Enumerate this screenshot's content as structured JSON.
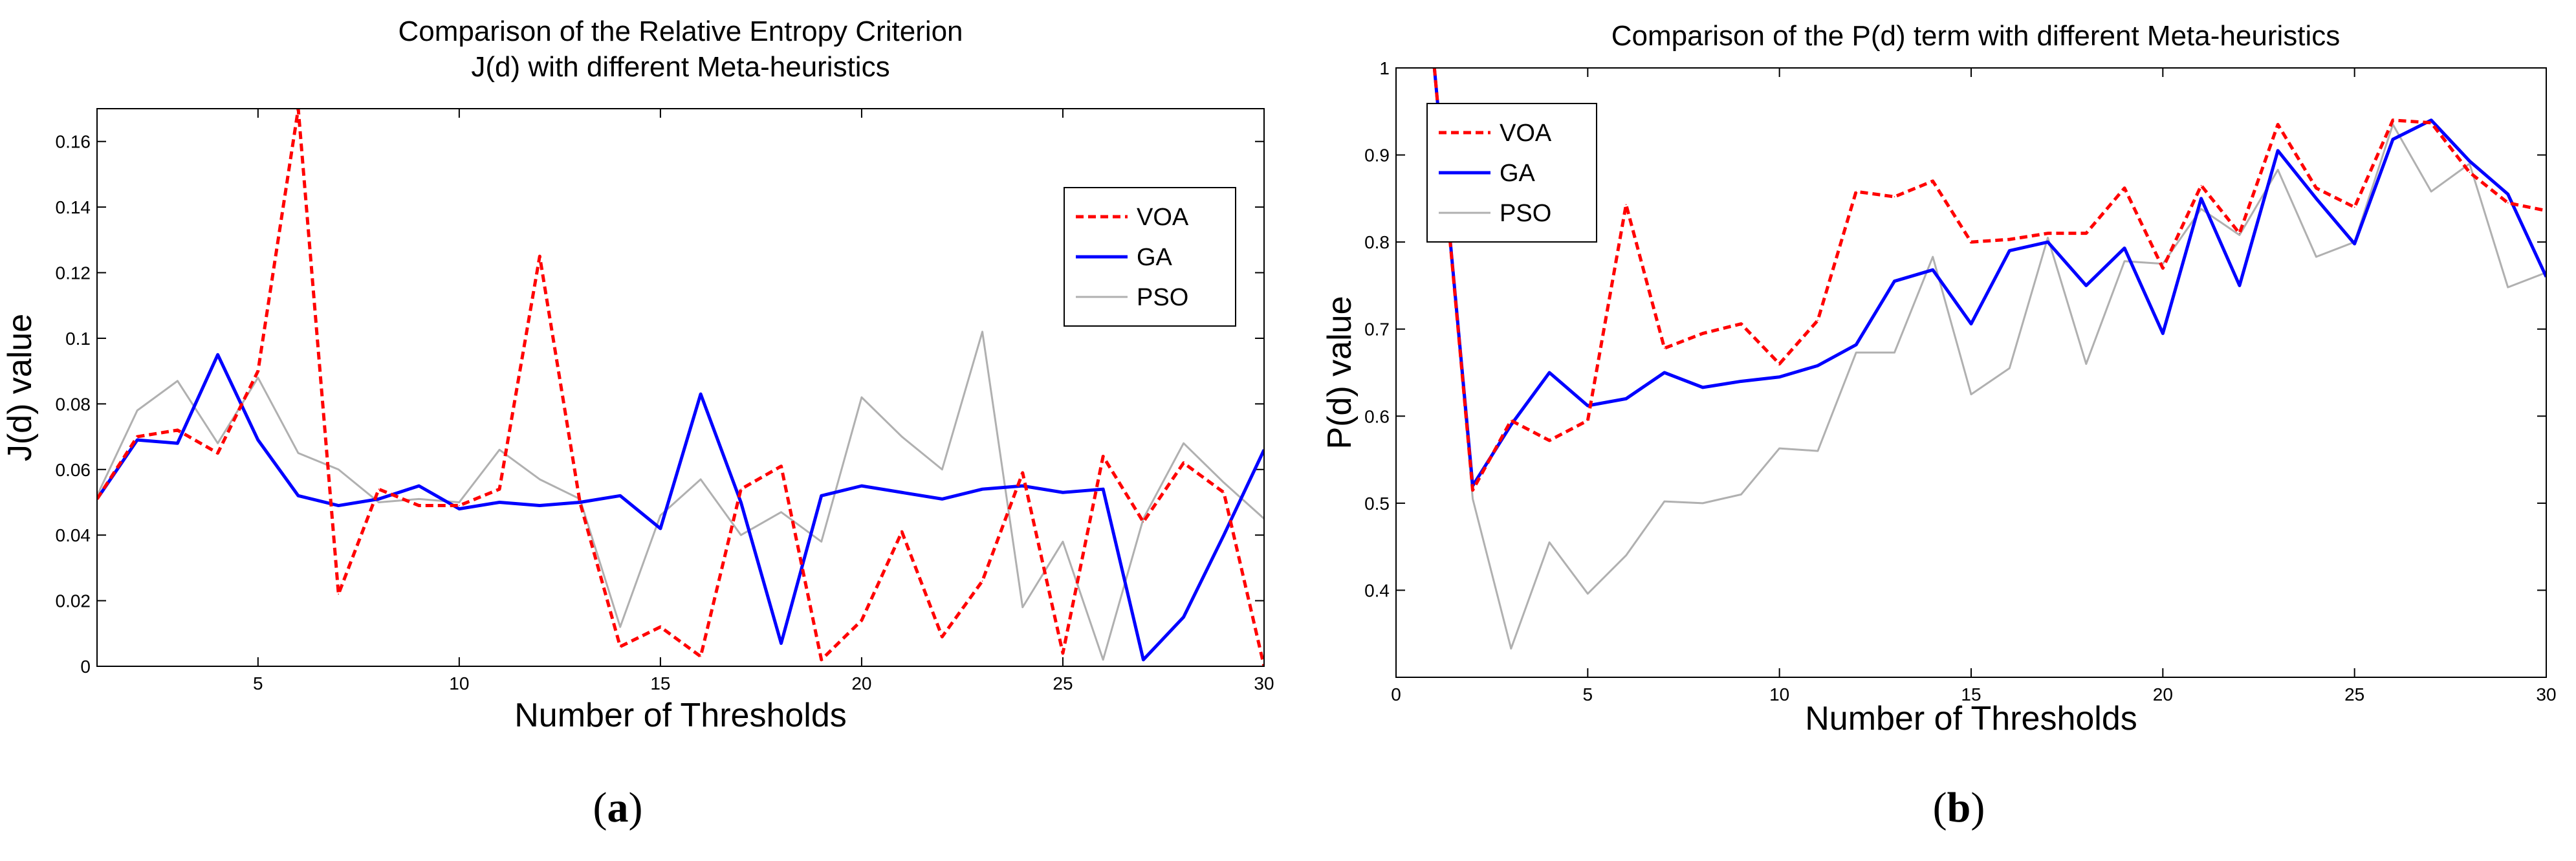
{
  "chart_data": [
    {
      "type": "line",
      "title": [
        "Comparison of the Relative Entropy Criterion",
        "J(d) with different Meta-heuristics"
      ],
      "xlabel": "Number of Thresholds",
      "ylabel": "J(d) value",
      "xlim": [
        1,
        30
      ],
      "ylim": [
        0,
        0.17
      ],
      "xticks": [
        5,
        10,
        15,
        20,
        25,
        30
      ],
      "yticks": [
        0,
        0.02,
        0.04,
        0.06,
        0.08,
        0.1,
        0.12,
        0.14,
        0.16
      ],
      "legend_position": "upper-right",
      "caption": "a",
      "x": [
        1,
        2,
        3,
        4,
        5,
        6,
        7,
        8,
        9,
        10,
        11,
        12,
        13,
        14,
        15,
        16,
        17,
        18,
        19,
        20,
        21,
        22,
        23,
        24,
        25,
        26,
        27,
        28,
        29,
        30
      ],
      "series": [
        {
          "name": "VOA",
          "color": "#ff0000",
          "style": "dashed",
          "values": [
            0.051,
            0.07,
            0.072,
            0.065,
            0.09,
            0.17,
            0.022,
            0.054,
            0.049,
            0.049,
            0.054,
            0.125,
            0.05,
            0.006,
            0.012,
            0.003,
            0.054,
            0.061,
            0.002,
            0.014,
            0.041,
            0.009,
            0.026,
            0.059,
            0.004,
            0.064,
            0.044,
            0.062,
            0.053,
            0.0
          ]
        },
        {
          "name": "GA",
          "color": "#0000ff",
          "style": "solid",
          "values": [
            0.051,
            0.069,
            0.068,
            0.095,
            0.069,
            0.052,
            0.049,
            0.051,
            0.055,
            0.048,
            0.05,
            0.049,
            0.05,
            0.052,
            0.042,
            0.083,
            0.05,
            0.007,
            0.052,
            0.055,
            0.053,
            0.051,
            0.054,
            0.055,
            0.053,
            0.054,
            0.002,
            0.015,
            0.04,
            0.066
          ]
        },
        {
          "name": "PSO",
          "color": "#b0b0b0",
          "style": "solid",
          "values": [
            0.052,
            0.078,
            0.087,
            0.068,
            0.088,
            0.065,
            0.06,
            0.05,
            0.051,
            0.05,
            0.066,
            0.057,
            0.051,
            0.012,
            0.046,
            0.057,
            0.04,
            0.047,
            0.038,
            0.082,
            0.07,
            0.06,
            0.102,
            0.018,
            0.038,
            0.002,
            0.045,
            0.068,
            0.056,
            0.045
          ]
        }
      ]
    },
    {
      "type": "line",
      "title": [
        "Comparison of the P(d) term with different Meta-heuristics"
      ],
      "xlabel": "Number of Thresholds",
      "ylabel": "P(d) value",
      "xlim": [
        0,
        30
      ],
      "ylim": [
        0.3,
        1.0
      ],
      "xticks": [
        0,
        5,
        10,
        15,
        20,
        25,
        30
      ],
      "yticks": [
        0.4,
        0.5,
        0.6,
        0.7,
        0.8,
        0.9,
        1
      ],
      "legend_position": "upper-left",
      "caption": "b",
      "x": [
        1,
        2,
        3,
        4,
        5,
        6,
        7,
        8,
        9,
        10,
        11,
        12,
        13,
        14,
        15,
        16,
        17,
        18,
        19,
        20,
        21,
        22,
        23,
        24,
        25,
        26,
        27,
        28,
        29,
        30
      ],
      "series": [
        {
          "name": "VOA",
          "color": "#ff0000",
          "style": "dashed",
          "values": [
            1.0,
            0.515,
            0.595,
            0.572,
            0.595,
            0.843,
            0.678,
            0.695,
            0.706,
            0.66,
            0.71,
            0.858,
            0.852,
            0.87,
            0.8,
            0.803,
            0.81,
            0.81,
            0.862,
            0.77,
            0.865,
            0.81,
            0.935,
            0.862,
            0.84,
            0.94,
            0.937,
            0.88,
            0.845,
            0.836
          ]
        },
        {
          "name": "GA",
          "color": "#0000ff",
          "style": "solid",
          "values": [
            1.0,
            0.52,
            0.59,
            0.65,
            0.612,
            0.62,
            0.65,
            0.633,
            0.64,
            0.645,
            0.658,
            0.682,
            0.755,
            0.768,
            0.706,
            0.79,
            0.8,
            0.75,
            0.793,
            0.695,
            0.85,
            0.75,
            0.905,
            0.85,
            0.798,
            0.918,
            0.94,
            0.893,
            0.855,
            0.76
          ]
        },
        {
          "name": "PSO",
          "color": "#b0b0b0",
          "style": "solid",
          "values": [
            1.0,
            0.505,
            0.333,
            0.455,
            0.396,
            0.44,
            0.502,
            0.5,
            0.51,
            0.563,
            0.56,
            0.673,
            0.673,
            0.783,
            0.625,
            0.655,
            0.805,
            0.66,
            0.778,
            0.775,
            0.838,
            0.808,
            0.883,
            0.783,
            0.8,
            0.935,
            0.858,
            0.89,
            0.748,
            0.765
          ]
        }
      ]
    }
  ]
}
